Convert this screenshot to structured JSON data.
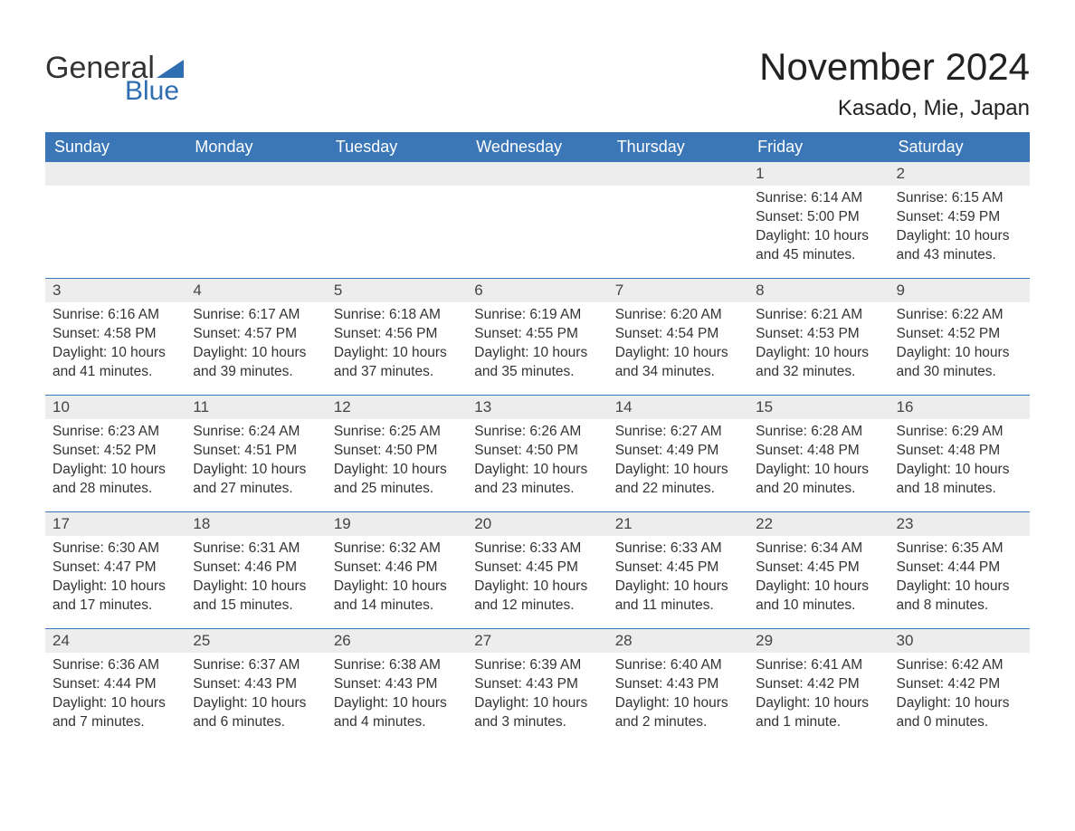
{
  "logo": {
    "text1": "General",
    "text2": "Blue",
    "tri_color": "#2f6eb0"
  },
  "title": "November 2024",
  "location": "Kasado, Mie, Japan",
  "colors": {
    "header_bg": "#3b77b7",
    "header_text": "#ffffff",
    "daynum_bg": "#ededed",
    "border": "#3b77b7",
    "text": "#333333"
  },
  "day_names": [
    "Sunday",
    "Monday",
    "Tuesday",
    "Wednesday",
    "Thursday",
    "Friday",
    "Saturday"
  ],
  "weeks": [
    [
      {
        "empty": true
      },
      {
        "empty": true
      },
      {
        "empty": true
      },
      {
        "empty": true
      },
      {
        "empty": true
      },
      {
        "day": "1",
        "sunrise": "Sunrise: 6:14 AM",
        "sunset": "Sunset: 5:00 PM",
        "daylight1": "Daylight: 10 hours",
        "daylight2": "and 45 minutes."
      },
      {
        "day": "2",
        "sunrise": "Sunrise: 6:15 AM",
        "sunset": "Sunset: 4:59 PM",
        "daylight1": "Daylight: 10 hours",
        "daylight2": "and 43 minutes."
      }
    ],
    [
      {
        "day": "3",
        "sunrise": "Sunrise: 6:16 AM",
        "sunset": "Sunset: 4:58 PM",
        "daylight1": "Daylight: 10 hours",
        "daylight2": "and 41 minutes."
      },
      {
        "day": "4",
        "sunrise": "Sunrise: 6:17 AM",
        "sunset": "Sunset: 4:57 PM",
        "daylight1": "Daylight: 10 hours",
        "daylight2": "and 39 minutes."
      },
      {
        "day": "5",
        "sunrise": "Sunrise: 6:18 AM",
        "sunset": "Sunset: 4:56 PM",
        "daylight1": "Daylight: 10 hours",
        "daylight2": "and 37 minutes."
      },
      {
        "day": "6",
        "sunrise": "Sunrise: 6:19 AM",
        "sunset": "Sunset: 4:55 PM",
        "daylight1": "Daylight: 10 hours",
        "daylight2": "and 35 minutes."
      },
      {
        "day": "7",
        "sunrise": "Sunrise: 6:20 AM",
        "sunset": "Sunset: 4:54 PM",
        "daylight1": "Daylight: 10 hours",
        "daylight2": "and 34 minutes."
      },
      {
        "day": "8",
        "sunrise": "Sunrise: 6:21 AM",
        "sunset": "Sunset: 4:53 PM",
        "daylight1": "Daylight: 10 hours",
        "daylight2": "and 32 minutes."
      },
      {
        "day": "9",
        "sunrise": "Sunrise: 6:22 AM",
        "sunset": "Sunset: 4:52 PM",
        "daylight1": "Daylight: 10 hours",
        "daylight2": "and 30 minutes."
      }
    ],
    [
      {
        "day": "10",
        "sunrise": "Sunrise: 6:23 AM",
        "sunset": "Sunset: 4:52 PM",
        "daylight1": "Daylight: 10 hours",
        "daylight2": "and 28 minutes."
      },
      {
        "day": "11",
        "sunrise": "Sunrise: 6:24 AM",
        "sunset": "Sunset: 4:51 PM",
        "daylight1": "Daylight: 10 hours",
        "daylight2": "and 27 minutes."
      },
      {
        "day": "12",
        "sunrise": "Sunrise: 6:25 AM",
        "sunset": "Sunset: 4:50 PM",
        "daylight1": "Daylight: 10 hours",
        "daylight2": "and 25 minutes."
      },
      {
        "day": "13",
        "sunrise": "Sunrise: 6:26 AM",
        "sunset": "Sunset: 4:50 PM",
        "daylight1": "Daylight: 10 hours",
        "daylight2": "and 23 minutes."
      },
      {
        "day": "14",
        "sunrise": "Sunrise: 6:27 AM",
        "sunset": "Sunset: 4:49 PM",
        "daylight1": "Daylight: 10 hours",
        "daylight2": "and 22 minutes."
      },
      {
        "day": "15",
        "sunrise": "Sunrise: 6:28 AM",
        "sunset": "Sunset: 4:48 PM",
        "daylight1": "Daylight: 10 hours",
        "daylight2": "and 20 minutes."
      },
      {
        "day": "16",
        "sunrise": "Sunrise: 6:29 AM",
        "sunset": "Sunset: 4:48 PM",
        "daylight1": "Daylight: 10 hours",
        "daylight2": "and 18 minutes."
      }
    ],
    [
      {
        "day": "17",
        "sunrise": "Sunrise: 6:30 AM",
        "sunset": "Sunset: 4:47 PM",
        "daylight1": "Daylight: 10 hours",
        "daylight2": "and 17 minutes."
      },
      {
        "day": "18",
        "sunrise": "Sunrise: 6:31 AM",
        "sunset": "Sunset: 4:46 PM",
        "daylight1": "Daylight: 10 hours",
        "daylight2": "and 15 minutes."
      },
      {
        "day": "19",
        "sunrise": "Sunrise: 6:32 AM",
        "sunset": "Sunset: 4:46 PM",
        "daylight1": "Daylight: 10 hours",
        "daylight2": "and 14 minutes."
      },
      {
        "day": "20",
        "sunrise": "Sunrise: 6:33 AM",
        "sunset": "Sunset: 4:45 PM",
        "daylight1": "Daylight: 10 hours",
        "daylight2": "and 12 minutes."
      },
      {
        "day": "21",
        "sunrise": "Sunrise: 6:33 AM",
        "sunset": "Sunset: 4:45 PM",
        "daylight1": "Daylight: 10 hours",
        "daylight2": "and 11 minutes."
      },
      {
        "day": "22",
        "sunrise": "Sunrise: 6:34 AM",
        "sunset": "Sunset: 4:45 PM",
        "daylight1": "Daylight: 10 hours",
        "daylight2": "and 10 minutes."
      },
      {
        "day": "23",
        "sunrise": "Sunrise: 6:35 AM",
        "sunset": "Sunset: 4:44 PM",
        "daylight1": "Daylight: 10 hours",
        "daylight2": "and 8 minutes."
      }
    ],
    [
      {
        "day": "24",
        "sunrise": "Sunrise: 6:36 AM",
        "sunset": "Sunset: 4:44 PM",
        "daylight1": "Daylight: 10 hours",
        "daylight2": "and 7 minutes."
      },
      {
        "day": "25",
        "sunrise": "Sunrise: 6:37 AM",
        "sunset": "Sunset: 4:43 PM",
        "daylight1": "Daylight: 10 hours",
        "daylight2": "and 6 minutes."
      },
      {
        "day": "26",
        "sunrise": "Sunrise: 6:38 AM",
        "sunset": "Sunset: 4:43 PM",
        "daylight1": "Daylight: 10 hours",
        "daylight2": "and 4 minutes."
      },
      {
        "day": "27",
        "sunrise": "Sunrise: 6:39 AM",
        "sunset": "Sunset: 4:43 PM",
        "daylight1": "Daylight: 10 hours",
        "daylight2": "and 3 minutes."
      },
      {
        "day": "28",
        "sunrise": "Sunrise: 6:40 AM",
        "sunset": "Sunset: 4:43 PM",
        "daylight1": "Daylight: 10 hours",
        "daylight2": "and 2 minutes."
      },
      {
        "day": "29",
        "sunrise": "Sunrise: 6:41 AM",
        "sunset": "Sunset: 4:42 PM",
        "daylight1": "Daylight: 10 hours",
        "daylight2": "and 1 minute."
      },
      {
        "day": "30",
        "sunrise": "Sunrise: 6:42 AM",
        "sunset": "Sunset: 4:42 PM",
        "daylight1": "Daylight: 10 hours",
        "daylight2": "and 0 minutes."
      }
    ]
  ]
}
